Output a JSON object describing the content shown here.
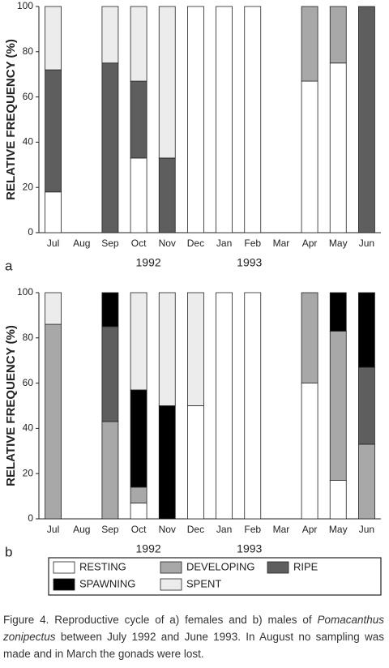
{
  "chart_data": [
    {
      "type": "bar",
      "stacked": true,
      "panel_label": "a",
      "y_label": "RELATIVE FREQUENCY (%)",
      "categories": [
        "Jul",
        "Aug",
        "Sep",
        "Oct",
        "Nov",
        "Dec",
        "Jan",
        "Feb",
        "Mar",
        "Apr",
        "May",
        "Jun"
      ],
      "year_labels": [
        "1992",
        "1993"
      ],
      "ylim": [
        0,
        100
      ],
      "yticks": [
        0,
        20,
        40,
        60,
        80,
        100
      ],
      "series": [
        {
          "color": "#ffffff",
          "values": [
            18,
            null,
            0,
            33,
            0,
            100,
            100,
            100,
            null,
            67,
            75,
            0
          ]
        },
        {
          "color": "#a8a8a8",
          "values": [
            0,
            null,
            0,
            0,
            0,
            0,
            0,
            0,
            null,
            33,
            25,
            0
          ]
        },
        {
          "color": "#5e5e5e",
          "values": [
            54,
            null,
            75,
            34,
            33,
            0,
            0,
            0,
            null,
            0,
            0,
            100
          ]
        },
        {
          "color": "#000000",
          "values": [
            0,
            null,
            0,
            0,
            0,
            0,
            0,
            0,
            null,
            0,
            0,
            0
          ]
        },
        {
          "color": "#ececec",
          "values": [
            28,
            null,
            25,
            33,
            67,
            0,
            0,
            0,
            null,
            0,
            0,
            0
          ]
        }
      ]
    },
    {
      "type": "bar",
      "stacked": true,
      "panel_label": "b",
      "y_label": "RELATIVE FREQUENCY (%)",
      "categories": [
        "Jul",
        "Aug",
        "Sep",
        "Oct",
        "Nov",
        "Dec",
        "Jan",
        "Feb",
        "Mar",
        "Apr",
        "May",
        "Jun"
      ],
      "year_labels": [
        "1992",
        "1993"
      ],
      "ylim": [
        0,
        100
      ],
      "yticks": [
        0,
        20,
        40,
        60,
        80,
        100
      ],
      "series": [
        {
          "name": "RESTING",
          "color": "#ffffff",
          "values": [
            0,
            null,
            0,
            7,
            0,
            50,
            100,
            100,
            null,
            60,
            17,
            0
          ]
        },
        {
          "name": "DEVELOPING",
          "color": "#a8a8a8",
          "values": [
            86,
            null,
            43,
            7,
            0,
            0,
            0,
            0,
            null,
            40,
            66,
            33
          ]
        },
        {
          "name": "RIPE",
          "color": "#5e5e5e",
          "values": [
            0,
            null,
            42,
            0,
            0,
            0,
            0,
            0,
            null,
            0,
            0,
            34
          ]
        },
        {
          "name": "SPAWNING",
          "color": "#000000",
          "values": [
            0,
            null,
            15,
            43,
            50,
            0,
            0,
            0,
            null,
            0,
            17,
            33
          ]
        },
        {
          "name": "SPENT",
          "color": "#ececec",
          "values": [
            14,
            null,
            0,
            43,
            50,
            50,
            0,
            0,
            null,
            0,
            0,
            0
          ]
        }
      ]
    }
  ],
  "caption": [
    "Figure 4. Reproductive cycle of a) females and b) males of ",
    "Pomacanthus zonipectus",
    " between July 1992 and June 1993. In August no sampling was made and in March the gonads were lost."
  ]
}
